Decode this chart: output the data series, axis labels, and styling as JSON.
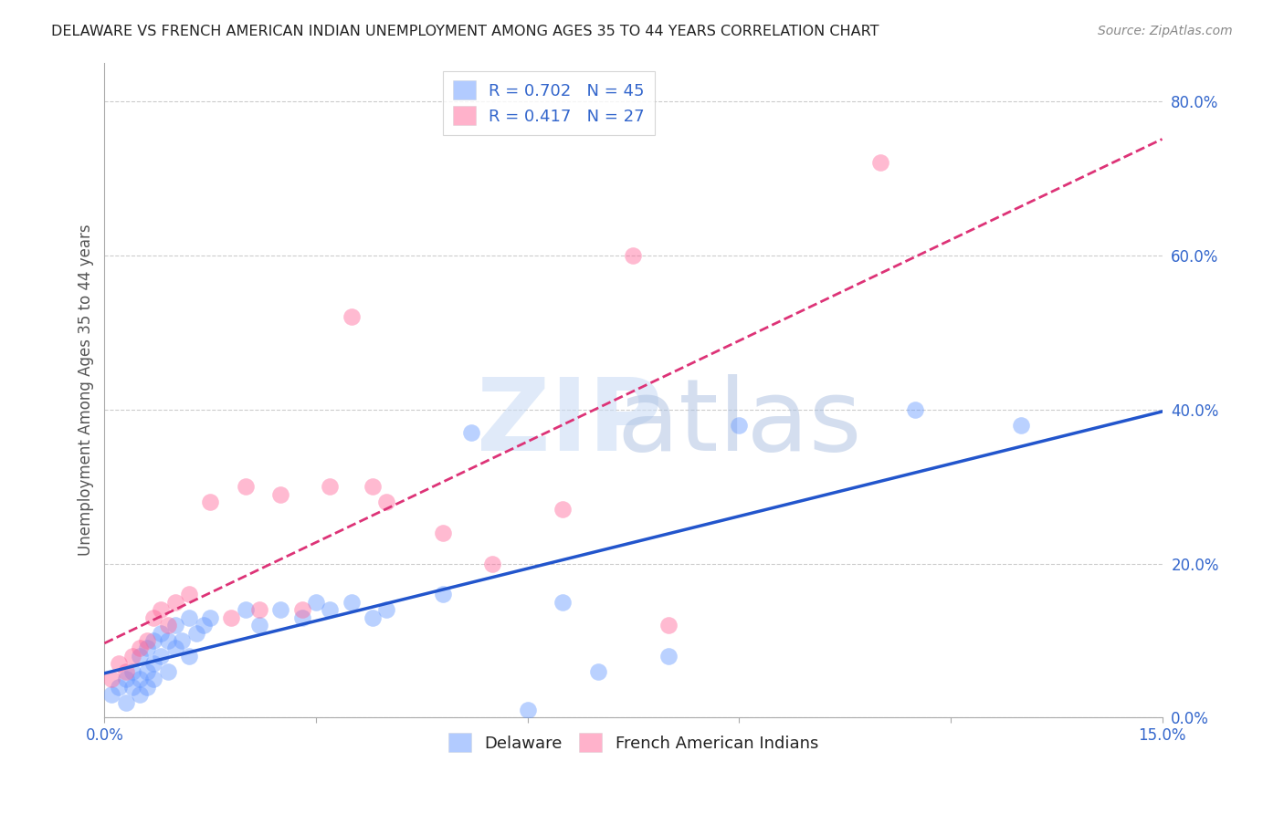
{
  "title": "DELAWARE VS FRENCH AMERICAN INDIAN UNEMPLOYMENT AMONG AGES 35 TO 44 YEARS CORRELATION CHART",
  "source": "Source: ZipAtlas.com",
  "ylabel": "Unemployment Among Ages 35 to 44 years",
  "xlim": [
    0.0,
    0.15
  ],
  "ylim": [
    0.0,
    0.85
  ],
  "xticks": [
    0.0,
    0.03,
    0.06,
    0.09,
    0.12,
    0.15
  ],
  "yticks_right": [
    0.0,
    0.2,
    0.4,
    0.6,
    0.8
  ],
  "ytick_right_labels": [
    "0.0%",
    "20.0%",
    "40.0%",
    "60.0%",
    "80.0%"
  ],
  "xtick_labels": [
    "0.0%",
    "",
    "",
    "",
    "",
    "15.0%"
  ],
  "delaware_color": "#6699ff",
  "french_color": "#ff6699",
  "delaware_R": 0.702,
  "delaware_N": 45,
  "french_R": 0.417,
  "french_N": 27,
  "delaware_x": [
    0.001,
    0.002,
    0.003,
    0.003,
    0.004,
    0.004,
    0.005,
    0.005,
    0.005,
    0.006,
    0.006,
    0.006,
    0.007,
    0.007,
    0.007,
    0.008,
    0.008,
    0.009,
    0.009,
    0.01,
    0.01,
    0.011,
    0.012,
    0.012,
    0.013,
    0.014,
    0.015,
    0.02,
    0.022,
    0.025,
    0.028,
    0.03,
    0.032,
    0.035,
    0.038,
    0.04,
    0.048,
    0.052,
    0.06,
    0.065,
    0.07,
    0.08,
    0.09,
    0.115,
    0.13
  ],
  "delaware_y": [
    0.03,
    0.04,
    0.05,
    0.02,
    0.06,
    0.04,
    0.08,
    0.05,
    0.03,
    0.09,
    0.06,
    0.04,
    0.1,
    0.07,
    0.05,
    0.11,
    0.08,
    0.1,
    0.06,
    0.12,
    0.09,
    0.1,
    0.13,
    0.08,
    0.11,
    0.12,
    0.13,
    0.14,
    0.12,
    0.14,
    0.13,
    0.15,
    0.14,
    0.15,
    0.13,
    0.14,
    0.16,
    0.37,
    0.01,
    0.15,
    0.06,
    0.08,
    0.38,
    0.4,
    0.38
  ],
  "french_x": [
    0.001,
    0.002,
    0.003,
    0.004,
    0.005,
    0.006,
    0.007,
    0.008,
    0.009,
    0.01,
    0.012,
    0.015,
    0.018,
    0.02,
    0.022,
    0.025,
    0.028,
    0.032,
    0.035,
    0.038,
    0.04,
    0.048,
    0.055,
    0.065,
    0.075,
    0.08,
    0.11
  ],
  "french_y": [
    0.05,
    0.07,
    0.06,
    0.08,
    0.09,
    0.1,
    0.13,
    0.14,
    0.12,
    0.15,
    0.16,
    0.28,
    0.13,
    0.3,
    0.14,
    0.29,
    0.14,
    0.3,
    0.52,
    0.3,
    0.28,
    0.24,
    0.2,
    0.27,
    0.6,
    0.12,
    0.72
  ]
}
